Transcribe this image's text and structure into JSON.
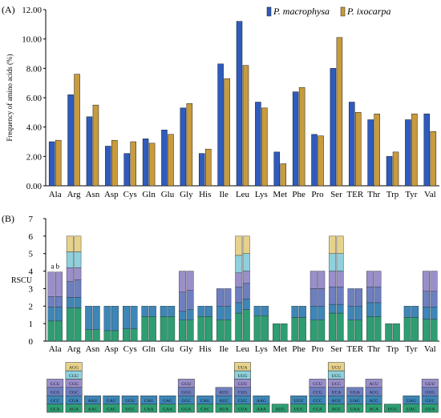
{
  "panel_a_label": "(A)",
  "panel_b_label": "(B)",
  "colors": {
    "series_1": "#2f5bbd",
    "series_2": "#c89b3c",
    "stack_1": "#2e9e72",
    "stack_2": "#3e86b7",
    "stack_3": "#6e7fc0",
    "stack_4": "#9a8fcb",
    "stack_5": "#8fd0dc",
    "stack_6": "#e6d28b"
  },
  "chart_data": [
    {
      "type": "bar",
      "title": "",
      "ylabel": "Frequency of amino acids (%)",
      "ylim": [
        0,
        12
      ],
      "yticks": [
        "0.00",
        "2.00",
        "4.00",
        "6.00",
        "8.00",
        "10.00",
        "12.00"
      ],
      "legend_position": "top-right",
      "categories": [
        "Ala",
        "Arg",
        "Asn",
        "Asp",
        "Cys",
        "Gln",
        "Glu",
        "Gly",
        "His",
        "Ile",
        "Leu",
        "Lys",
        "Met",
        "Phe",
        "Pro",
        "Ser",
        "TER",
        "Thr",
        "Trp",
        "Tyr",
        "Val"
      ],
      "series": [
        {
          "name": "P. macrophysa",
          "values": [
            3.0,
            6.2,
            4.7,
            2.7,
            2.2,
            3.2,
            3.8,
            5.3,
            2.2,
            8.3,
            11.2,
            5.7,
            2.3,
            6.4,
            3.5,
            8.0,
            5.7,
            4.5,
            2.0,
            4.5,
            4.9
          ]
        },
        {
          "name": "P. ixocarpa",
          "values": [
            3.1,
            7.6,
            5.5,
            3.1,
            3.0,
            2.9,
            3.5,
            5.6,
            2.5,
            7.3,
            8.2,
            5.3,
            1.5,
            6.7,
            3.4,
            10.1,
            5.0,
            4.9,
            2.3,
            4.9,
            3.7
          ]
        }
      ]
    },
    {
      "type": "stacked-bar",
      "title": "",
      "ylabel": "RSCU",
      "ylim": [
        0,
        7
      ],
      "yticks": [
        "0",
        "1",
        "2",
        "3",
        "4",
        "5",
        "6",
        "7"
      ],
      "bar_annotation": "a b",
      "categories": [
        "Ala",
        "Arg",
        "Asn",
        "Asp",
        "Cys",
        "Gln",
        "Glu",
        "Gly",
        "His",
        "Ile",
        "Leu",
        "Lys",
        "Met",
        "Phe",
        "Pro",
        "Ser",
        "TER",
        "Thr",
        "Trp",
        "Tyr",
        "Val"
      ],
      "segments": [
        [
          [
            1.15,
            0.8,
            0.6,
            1.4
          ],
          [
            1.15,
            0.8,
            0.6,
            1.4
          ]
        ],
        [
          [
            1.9,
            0.6,
            0.9,
            0.8,
            0.9,
            0.9
          ],
          [
            1.9,
            0.6,
            1.0,
            0.7,
            0.9,
            0.9
          ]
        ],
        [
          [
            0.65,
            1.35
          ],
          [
            0.65,
            1.35
          ]
        ],
        [
          [
            0.6,
            1.4
          ],
          [
            0.6,
            1.4
          ]
        ],
        [
          [
            0.7,
            1.3
          ],
          [
            0.7,
            1.3
          ]
        ],
        [
          [
            1.4,
            0.6
          ],
          [
            1.4,
            0.6
          ]
        ],
        [
          [
            1.4,
            0.6
          ],
          [
            1.4,
            0.6
          ]
        ],
        [
          [
            1.2,
            0.5,
            1.1,
            1.2
          ],
          [
            1.2,
            0.6,
            1.1,
            1.1
          ]
        ],
        [
          [
            1.4,
            0.6
          ],
          [
            1.4,
            0.6
          ]
        ],
        [
          [
            1.2,
            0.8,
            1.0
          ],
          [
            1.2,
            0.8,
            1.0
          ]
        ],
        [
          [
            1.6,
            0.6,
            0.9,
            0.8,
            1.0,
            1.1
          ],
          [
            1.8,
            0.6,
            0.9,
            0.7,
            1.0,
            1.0
          ]
        ],
        [
          [
            1.45,
            0.55
          ],
          [
            1.45,
            0.55
          ]
        ],
        [
          [
            1.0
          ],
          [
            1.0
          ]
        ],
        [
          [
            1.35,
            0.65
          ],
          [
            1.35,
            0.65
          ]
        ],
        [
          [
            1.2,
            0.8,
            1.0,
            1.0
          ],
          [
            1.2,
            0.8,
            1.0,
            1.0
          ]
        ],
        [
          [
            1.6,
            0.5,
            1.0,
            0.9,
            1.0,
            1.0
          ],
          [
            1.6,
            0.5,
            1.0,
            0.9,
            1.0,
            1.0
          ]
        ],
        [
          [
            1.2,
            0.8,
            1.0
          ],
          [
            1.2,
            0.8,
            1.0
          ]
        ],
        [
          [
            1.4,
            0.8,
            0.9,
            0.9
          ],
          [
            1.4,
            0.8,
            0.9,
            0.9
          ]
        ],
        [
          [
            1.0
          ],
          [
            1.0
          ]
        ],
        [
          [
            1.35,
            0.65
          ],
          [
            1.35,
            0.65
          ]
        ],
        [
          [
            1.25,
            0.7,
            0.9,
            1.15
          ],
          [
            1.25,
            0.7,
            0.9,
            1.15
          ]
        ]
      ],
      "codons": [
        [
          "GCA",
          "GCC",
          "GCG",
          "GCU"
        ],
        [
          "AGA",
          "CGA",
          "CGC",
          "CGG",
          "CGU",
          "AGG"
        ],
        [
          "AAC",
          "AAU"
        ],
        [
          "GAC",
          "GAU"
        ],
        [
          "UGC",
          "UGU"
        ],
        [
          "CAA",
          "CAG"
        ],
        [
          "GAA",
          "GAG"
        ],
        [
          "GGA",
          "GGC",
          "GGG",
          "GGU"
        ],
        [
          "CAC",
          "CAU"
        ],
        [
          "AUA",
          "AUC",
          "AUU"
        ],
        [
          "CUA",
          "CUC",
          "CUG",
          "CUU",
          "UUG",
          "UUA"
        ],
        [
          "AAA",
          "AAG"
        ],
        [
          "AUG"
        ],
        [
          "UUC",
          "UUU"
        ],
        [
          "CCA",
          "CCC",
          "CCG",
          "CCU"
        ],
        [
          "AGC",
          "AGU",
          "UCA",
          "UCC",
          "UCG",
          "UCU"
        ],
        [
          "UAA",
          "UAG",
          "UGA"
        ],
        [
          "ACA",
          "ACC",
          "ACG",
          "ACU"
        ],
        [
          "UGG"
        ],
        [
          "UAC",
          "UAU"
        ],
        [
          "GUA",
          "GUC",
          "GUG",
          "GUU"
        ]
      ]
    }
  ]
}
